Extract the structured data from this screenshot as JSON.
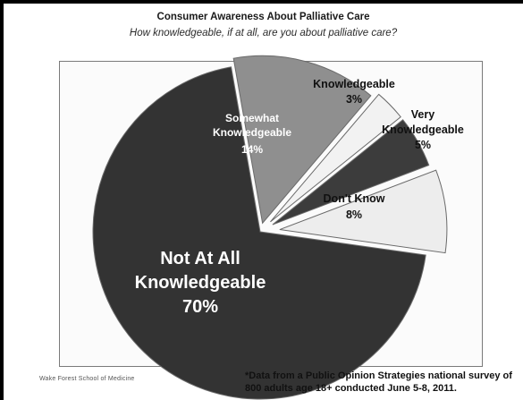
{
  "chart_data": {
    "type": "pie",
    "title": "Consumer Awareness About Palliative Care",
    "subtitle": "How knowledgeable, if at all, are you about palliative care?",
    "slices": [
      {
        "label": "Not At All Knowledgeable",
        "value": 70,
        "value_label": "70%",
        "color": "#333333"
      },
      {
        "label": "Somewhat Knowledgeable",
        "value": 14,
        "value_label": "14%",
        "color": "#8f8f8f"
      },
      {
        "label": "Knowledgeable",
        "value": 3,
        "value_label": "3%",
        "color": "#f2f2f2"
      },
      {
        "label": "Very Knowledgeable",
        "value": 5,
        "value_label": "5%",
        "color": "#3c3c3c"
      },
      {
        "label": "Don't Know",
        "value": 8,
        "value_label": "8%",
        "color": "#ededed"
      }
    ],
    "legend": "none"
  },
  "footnote": {
    "line1": "*Data from a Public Opinion Strategies national survey of",
    "line2": "800 adults age 18+ conducted June 5-8, 2011."
  },
  "source_logo": "Wake Forest School of Medicine"
}
